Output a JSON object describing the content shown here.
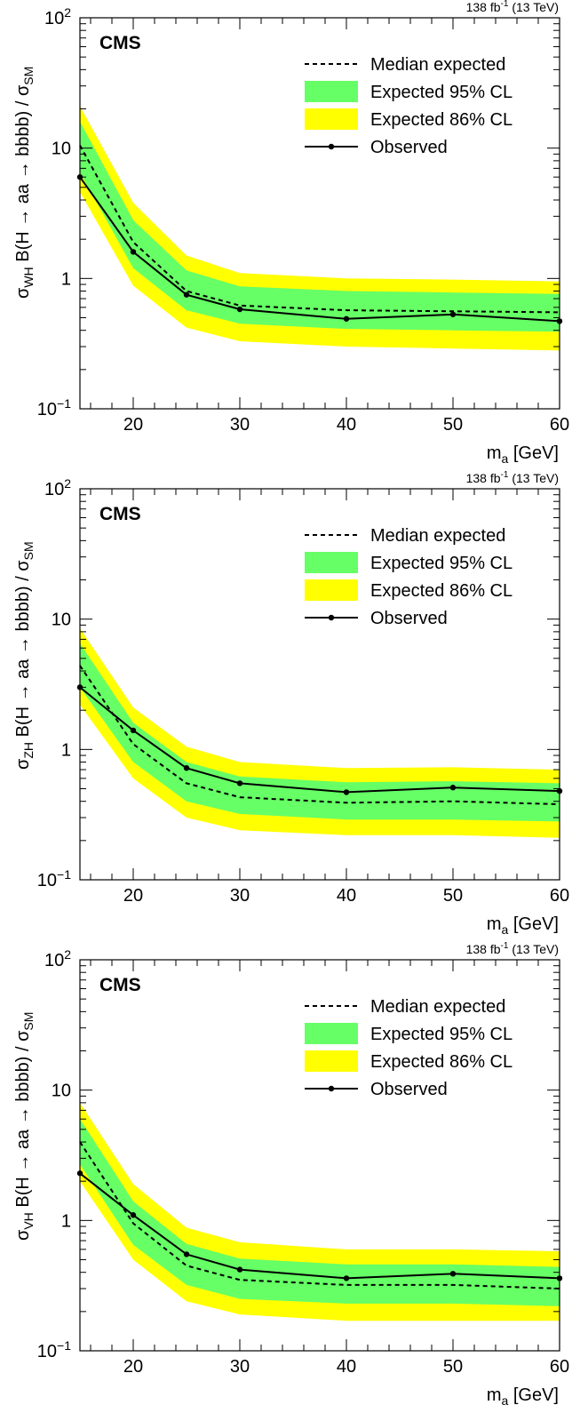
{
  "chart_data": [
    {
      "type": "line",
      "panel": "WH",
      "cms_label": "CMS",
      "lumi": "138 fb",
      "lumi_exp": "-1",
      "lumi_energy": " (13 TeV)",
      "xlabel_main": "m",
      "xlabel_sub": "a",
      "xlabel_unit": " [GeV]",
      "ylabel_main": "σ",
      "ylabel_sub": "WH",
      "ylabel_rest": " B(H → aa → bbbb) / σ",
      "ylabel_sub2": "SM",
      "xlim": [
        15,
        60
      ],
      "ylim": [
        0.1,
        100
      ],
      "yscale": "log",
      "x_ticks": [
        "20",
        "30",
        "40",
        "50",
        "60"
      ],
      "y_ticks": [
        {
          "base": "10",
          "exp": "−1"
        },
        {
          "base": "1",
          "exp": ""
        },
        {
          "base": "10",
          "exp": ""
        },
        {
          "base": "10",
          "exp": "2"
        }
      ],
      "legend": {
        "median": "Median expected",
        "band95": "Expected 95% CL",
        "band86": "Expected 86% CL",
        "observed": "Observed"
      },
      "colors": {
        "band95": "#66ff66",
        "band86": "#ffff00",
        "line": "#000000"
      },
      "x": [
        15,
        20,
        25,
        30,
        40,
        50,
        60
      ],
      "observed": [
        6.0,
        1.6,
        0.75,
        0.58,
        0.49,
        0.53,
        0.47
      ],
      "expected": [
        10.5,
        1.9,
        0.8,
        0.62,
        0.57,
        0.56,
        0.55
      ],
      "band95_low": [
        6.5,
        1.2,
        0.57,
        0.45,
        0.41,
        0.4,
        0.39
      ],
      "band95_high": [
        16.0,
        2.8,
        1.15,
        0.87,
        0.8,
        0.78,
        0.76
      ],
      "band86_low": [
        4.6,
        0.88,
        0.42,
        0.33,
        0.3,
        0.29,
        0.28
      ],
      "band86_high": [
        21.0,
        3.8,
        1.5,
        1.1,
        1.0,
        0.98,
        0.95
      ]
    },
    {
      "type": "line",
      "panel": "ZH",
      "cms_label": "CMS",
      "lumi": "138 fb",
      "lumi_exp": "-1",
      "lumi_energy": " (13 TeV)",
      "xlabel_main": "m",
      "xlabel_sub": "a",
      "xlabel_unit": " [GeV]",
      "ylabel_main": "σ",
      "ylabel_sub": "ZH",
      "ylabel_rest": " B(H → aa → bbbb) / σ",
      "ylabel_sub2": "SM",
      "xlim": [
        15,
        60
      ],
      "ylim": [
        0.1,
        100
      ],
      "yscale": "log",
      "x_ticks": [
        "20",
        "30",
        "40",
        "50",
        "60"
      ],
      "y_ticks": [
        {
          "base": "10",
          "exp": "−1"
        },
        {
          "base": "1",
          "exp": ""
        },
        {
          "base": "10",
          "exp": ""
        },
        {
          "base": "10",
          "exp": "2"
        }
      ],
      "legend": {
        "median": "Median expected",
        "band95": "Expected 95% CL",
        "band86": "Expected 86% CL",
        "observed": "Observed"
      },
      "colors": {
        "band95": "#66ff66",
        "band86": "#ffff00",
        "line": "#000000"
      },
      "x": [
        15,
        20,
        25,
        30,
        40,
        50,
        60
      ],
      "observed": [
        3.0,
        1.4,
        0.72,
        0.55,
        0.47,
        0.51,
        0.48
      ],
      "expected": [
        4.4,
        1.1,
        0.55,
        0.43,
        0.39,
        0.4,
        0.38
      ],
      "band95_low": [
        3.0,
        0.8,
        0.4,
        0.32,
        0.29,
        0.29,
        0.28
      ],
      "band95_high": [
        6.5,
        1.6,
        0.8,
        0.62,
        0.56,
        0.57,
        0.55
      ],
      "band86_low": [
        2.2,
        0.6,
        0.3,
        0.24,
        0.22,
        0.22,
        0.21
      ],
      "band86_high": [
        8.5,
        2.1,
        1.05,
        0.8,
        0.72,
        0.73,
        0.7
      ]
    },
    {
      "type": "line",
      "panel": "VH",
      "cms_label": "CMS",
      "lumi": "138 fb",
      "lumi_exp": "-1",
      "lumi_energy": " (13 TeV)",
      "xlabel_main": "m",
      "xlabel_sub": "a",
      "xlabel_unit": " [GeV]",
      "ylabel_main": "σ",
      "ylabel_sub": "VH",
      "ylabel_rest": " B(H → aa → bbbb) / σ",
      "ylabel_sub2": "SM",
      "xlim": [
        15,
        60
      ],
      "ylim": [
        0.1,
        100
      ],
      "yscale": "log",
      "x_ticks": [
        "20",
        "30",
        "40",
        "50",
        "60"
      ],
      "y_ticks": [
        {
          "base": "10",
          "exp": "−1"
        },
        {
          "base": "1",
          "exp": ""
        },
        {
          "base": "10",
          "exp": ""
        },
        {
          "base": "10",
          "exp": "2"
        }
      ],
      "legend": {
        "median": "Median expected",
        "band95": "Expected 95% CL",
        "band86": "Expected 86% CL",
        "observed": "Observed"
      },
      "colors": {
        "band95": "#66ff66",
        "band86": "#ffff00",
        "line": "#000000"
      },
      "x": [
        15,
        20,
        25,
        30,
        40,
        50,
        60
      ],
      "observed": [
        2.3,
        1.1,
        0.55,
        0.42,
        0.36,
        0.39,
        0.36
      ],
      "expected": [
        4.0,
        0.95,
        0.45,
        0.35,
        0.32,
        0.32,
        0.3
      ],
      "band95_low": [
        2.7,
        0.65,
        0.32,
        0.25,
        0.23,
        0.23,
        0.22
      ],
      "band95_high": [
        6.0,
        1.4,
        0.66,
        0.51,
        0.46,
        0.46,
        0.44
      ],
      "band86_low": [
        2.0,
        0.5,
        0.24,
        0.19,
        0.17,
        0.17,
        0.17
      ],
      "band86_high": [
        8.0,
        1.9,
        0.88,
        0.68,
        0.6,
        0.6,
        0.58
      ]
    }
  ]
}
